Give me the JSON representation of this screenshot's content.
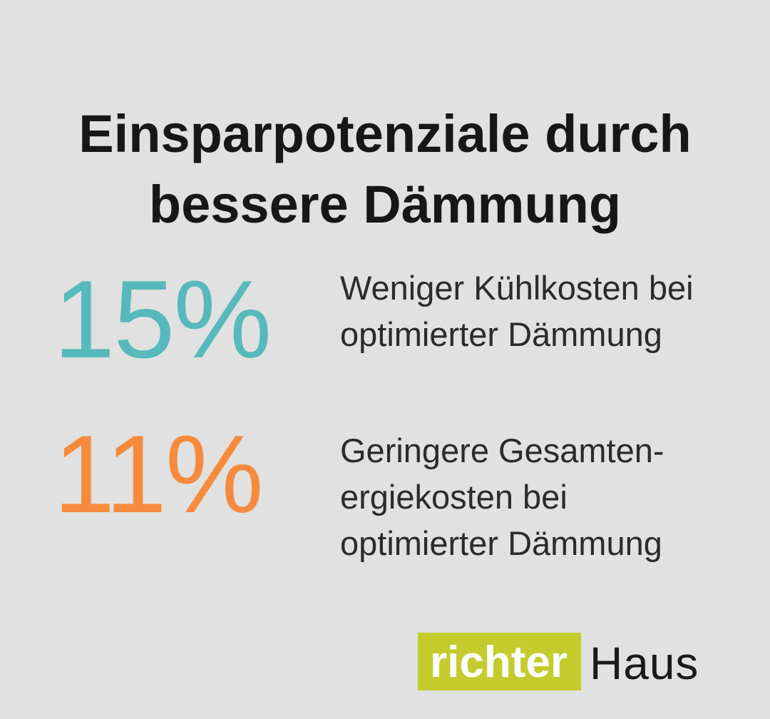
{
  "colors": {
    "background": "#e0e1e0",
    "title": "#171717",
    "stat_teal": "#57b9bc",
    "stat_orange": "#f78b3d",
    "description": "#2b2b2b",
    "logo_green": "#c4cc2d",
    "logo_primary_text": "#ffffff",
    "logo_secondary_text": "#1a1a1a"
  },
  "title": {
    "lines": [
      "Einsparpotenziale durch",
      "bessere Dämmung"
    ]
  },
  "stats": [
    {
      "value": "15%",
      "color": "#57b9bc",
      "lines": [
        "Weniger Kühlkosten bei",
        "optimierter Dämmung"
      ]
    },
    {
      "value": "11%",
      "color": "#f78b3d",
      "lines": [
        "Geringere Gesamten-",
        "ergiekosten bei",
        "optimierter Dämmung"
      ]
    }
  ],
  "logo": {
    "primary": "richter",
    "secondary": "Haus"
  },
  "chart_data": {
    "type": "table",
    "title": "Einsparpotenziale durch bessere Dämmung",
    "categories": [
      "Weniger Kühlkosten bei optimierter Dämmung",
      "Geringere Gesamtenergiekosten bei optimierter Dämmung"
    ],
    "values": [
      15,
      11
    ],
    "unit": "%",
    "value_colors": [
      "#57b9bc",
      "#f78b3d"
    ],
    "legend_position": "none",
    "grid": false
  }
}
